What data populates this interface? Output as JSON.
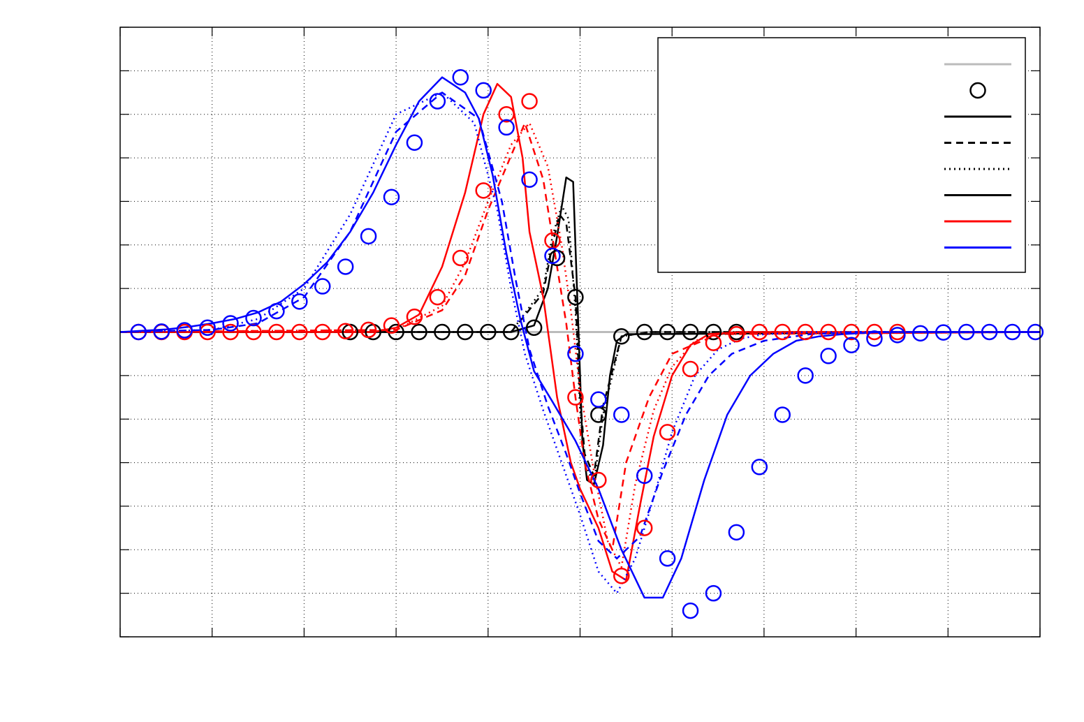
{
  "chart_data": {
    "type": "line",
    "title": "",
    "xlabel": "",
    "ylabel": "",
    "xlim": [
      0,
      20
    ],
    "ylim": [
      -7,
      7
    ],
    "x_ticks": [
      0,
      2,
      4,
      6,
      8,
      10,
      12,
      14,
      16,
      18,
      20
    ],
    "y_ticks": [
      -7,
      -6,
      -5,
      -4,
      -3,
      -2,
      -1,
      0,
      1,
      2,
      3,
      4,
      5,
      6,
      7
    ],
    "grid": true,
    "legend_placement": "top-right",
    "colors": {
      "black": "#000000",
      "red": "#ff0000",
      "blue": "#0000ff",
      "gray": "#bbbbbb"
    },
    "series": [
      {
        "color": "#bbbbbb",
        "style": "solid",
        "width": 3,
        "x": [
          0,
          20
        ],
        "y": [
          0,
          0
        ]
      },
      {
        "color": "#000000",
        "style": "dashed",
        "width": 2.5,
        "x": [
          0,
          8.5,
          9.2,
          9.4,
          9.55,
          9.7,
          9.9,
          10.0,
          10.1,
          10.3,
          10.5,
          10.7,
          10.9,
          11.5,
          20
        ],
        "y": [
          0,
          0,
          0.9,
          2.0,
          2.7,
          2.5,
          0.8,
          -1.5,
          -2.8,
          -3.3,
          -1.7,
          -0.9,
          -0.1,
          0,
          0
        ]
      },
      {
        "color": "#000000",
        "style": "dotted",
        "width": 2.5,
        "x": [
          0,
          8.5,
          9.2,
          9.4,
          9.6,
          9.75,
          9.9,
          10.0,
          10.1,
          10.3,
          10.5,
          10.7,
          10.9,
          11.5,
          20
        ],
        "y": [
          0,
          0,
          1.0,
          2.2,
          2.9,
          2.6,
          0.5,
          -1.8,
          -3.0,
          -3.5,
          -1.9,
          -1.0,
          -0.1,
          0,
          0
        ]
      },
      {
        "color": "#000000",
        "style": "solid",
        "width": 2.5,
        "x": [
          0,
          8.5,
          9.0,
          9.3,
          9.5,
          9.7,
          9.85,
          9.95,
          10.05,
          10.15,
          10.3,
          10.5,
          10.65,
          10.8,
          11.0,
          20
        ],
        "y": [
          0,
          0,
          0.15,
          1.0,
          2.2,
          3.55,
          3.45,
          0.5,
          -2.5,
          -3.4,
          -3.5,
          -2.6,
          -1.0,
          -0.2,
          -0.05,
          0
        ]
      },
      {
        "color": "#ff0000",
        "style": "dashed",
        "width": 2.5,
        "x": [
          0,
          6.0,
          7.0,
          7.5,
          8.0,
          8.4,
          8.8,
          9.2,
          9.5,
          9.7,
          9.9,
          10.1,
          10.4,
          10.7,
          11.0,
          11.5,
          12.0,
          13.0,
          20
        ],
        "y": [
          0,
          0.05,
          0.5,
          1.3,
          2.8,
          3.8,
          4.8,
          3.5,
          1.5,
          0.2,
          -1.5,
          -3.0,
          -4.3,
          -5.0,
          -3.0,
          -1.5,
          -0.5,
          -0.05,
          0
        ]
      },
      {
        "color": "#ff0000",
        "style": "dotted",
        "width": 2.5,
        "x": [
          0,
          6.0,
          7.0,
          7.5,
          8.0,
          8.5,
          8.9,
          9.3,
          9.6,
          9.8,
          10.0,
          10.3,
          10.6,
          10.9,
          11.2,
          11.6,
          12.0,
          12.5,
          13.0,
          20
        ],
        "y": [
          0,
          0.05,
          0.6,
          1.6,
          3.0,
          4.3,
          4.8,
          3.8,
          2.0,
          0.5,
          -1.3,
          -3.2,
          -4.8,
          -5.4,
          -3.5,
          -1.8,
          -0.8,
          -0.2,
          -0.05,
          0
        ]
      },
      {
        "color": "#ff0000",
        "style": "solid",
        "width": 2.5,
        "x": [
          0,
          5.5,
          6.0,
          6.5,
          7.0,
          7.5,
          7.9,
          8.2,
          8.5,
          8.75,
          8.9,
          9.2,
          9.5,
          9.8,
          10.0,
          10.4,
          10.7,
          11.0,
          11.3,
          11.6,
          12.0,
          12.4,
          12.8,
          13.5,
          20
        ],
        "y": [
          0,
          0,
          0.1,
          0.4,
          1.5,
          3.2,
          5.0,
          5.7,
          5.4,
          4.0,
          2.3,
          0.8,
          -1.5,
          -3.0,
          -3.6,
          -4.5,
          -5.5,
          -5.7,
          -4.0,
          -2.4,
          -1.0,
          -0.3,
          -0.05,
          0,
          0
        ]
      },
      {
        "color": "#0000ff",
        "style": "dashed",
        "width": 2.5,
        "x": [
          0,
          2.0,
          3.0,
          4.0,
          5.0,
          6.0,
          7.0,
          7.8,
          8.3,
          8.6,
          8.9,
          9.3,
          9.7,
          10.0,
          10.4,
          10.8,
          11.3,
          11.8,
          12.3,
          12.8,
          13.3,
          14.0,
          15.0,
          16.0,
          20
        ],
        "y": [
          0,
          0.05,
          0.2,
          0.8,
          2.3,
          4.6,
          5.5,
          4.9,
          3.0,
          1.2,
          -0.4,
          -1.7,
          -2.8,
          -3.7,
          -4.8,
          -5.2,
          -4.7,
          -3.2,
          -1.9,
          -1.0,
          -0.5,
          -0.2,
          -0.05,
          0,
          0
        ]
      },
      {
        "color": "#0000ff",
        "style": "dotted",
        "width": 2.5,
        "x": [
          0,
          2.0,
          3.0,
          4.0,
          5.0,
          6.0,
          7.0,
          7.7,
          8.2,
          8.5,
          8.8,
          9.2,
          9.6,
          10.0,
          10.4,
          10.8,
          11.2,
          11.6,
          12.0,
          12.5,
          13.0,
          13.5,
          14.0,
          15.0,
          16.0,
          20
        ],
        "y": [
          0,
          0.05,
          0.3,
          1.0,
          2.7,
          5.0,
          5.5,
          4.8,
          2.8,
          1.0,
          -0.5,
          -1.8,
          -3.0,
          -4.2,
          -5.5,
          -6.0,
          -5.2,
          -3.8,
          -2.3,
          -1.0,
          -0.4,
          -0.15,
          -0.05,
          0,
          0,
          0
        ]
      },
      {
        "color": "#0000ff",
        "style": "solid",
        "width": 2.5,
        "x": [
          0,
          0.5,
          1.0,
          1.5,
          2.0,
          2.5,
          3.0,
          3.5,
          4.0,
          4.5,
          5.0,
          5.5,
          6.0,
          6.5,
          7.0,
          7.5,
          7.8,
          8.1,
          8.4,
          8.7,
          9.0,
          9.4,
          9.9,
          10.4,
          10.9,
          11.4,
          11.8,
          12.2,
          12.7,
          13.2,
          13.7,
          14.2,
          14.7,
          15.2,
          15.7,
          16.5,
          18.0,
          20
        ],
        "y": [
          0,
          0.03,
          0.06,
          0.12,
          0.2,
          0.3,
          0.45,
          0.7,
          1.1,
          1.6,
          2.3,
          3.2,
          4.3,
          5.3,
          5.85,
          5.5,
          4.9,
          3.6,
          1.8,
          0.3,
          -0.9,
          -1.6,
          -2.5,
          -3.6,
          -5.0,
          -6.1,
          -6.1,
          -5.2,
          -3.4,
          -1.9,
          -1.0,
          -0.5,
          -0.2,
          -0.1,
          -0.05,
          0,
          0,
          0
        ]
      }
    ],
    "markers": [
      {
        "color": "#000000",
        "x": [
          5.0,
          5.5,
          6.0,
          6.5,
          7.0,
          7.5,
          8.0,
          8.5,
          9.0,
          9.5,
          9.9,
          10.4,
          10.9,
          11.4,
          11.9,
          12.4,
          12.9,
          13.4
        ],
        "y": [
          0,
          0,
          0,
          0,
          0,
          0,
          0,
          0,
          0.1,
          1.7,
          0.8,
          -1.9,
          -0.1,
          0,
          0,
          0,
          0,
          0
        ]
      },
      {
        "color": "#ff0000",
        "x": [
          0.4,
          0.9,
          1.4,
          1.9,
          2.4,
          2.9,
          3.4,
          3.9,
          4.4,
          4.9,
          5.4,
          5.9,
          6.4,
          6.9,
          7.4,
          7.9,
          8.4,
          8.9,
          9.4,
          9.9,
          10.4,
          10.9,
          11.4,
          11.9,
          12.4,
          12.9,
          13.4,
          13.9,
          14.4,
          14.9,
          15.4,
          15.9,
          16.4,
          16.9
        ],
        "y": [
          0,
          0,
          0,
          0,
          0,
          0,
          0,
          0,
          0,
          0.02,
          0.05,
          0.15,
          0.35,
          0.8,
          1.7,
          3.25,
          5.0,
          5.3,
          2.1,
          -1.5,
          -3.4,
          -5.6,
          -4.5,
          -2.3,
          -0.85,
          -0.25,
          -0.05,
          0,
          0,
          0,
          0,
          0,
          0,
          0
        ]
      },
      {
        "color": "#0000ff",
        "x": [
          0.4,
          0.9,
          1.4,
          1.9,
          2.4,
          2.9,
          3.4,
          3.9,
          4.4,
          4.9,
          5.4,
          5.9,
          6.4,
          6.9,
          7.4,
          7.9,
          8.4,
          8.9,
          9.4,
          9.9,
          10.4,
          10.9,
          11.4,
          11.9,
          12.4,
          12.9,
          13.4,
          13.9,
          14.4,
          14.9,
          15.4,
          15.9,
          16.4,
          16.9,
          17.4,
          17.9,
          18.4,
          18.9,
          19.4,
          19.9
        ],
        "y": [
          0,
          0.01,
          0.04,
          0.1,
          0.2,
          0.32,
          0.48,
          0.7,
          1.05,
          1.5,
          2.2,
          3.1,
          4.35,
          5.3,
          5.85,
          5.55,
          4.7,
          3.5,
          1.75,
          -0.5,
          -1.55,
          -1.9,
          -3.3,
          -5.2,
          -6.4,
          -6.0,
          -4.6,
          -3.1,
          -1.9,
          -1.0,
          -0.55,
          -0.3,
          -0.15,
          -0.07,
          -0.03,
          -0.01,
          0,
          0,
          0,
          0
        ]
      }
    ],
    "legend": {
      "entries": [
        {
          "color": "#bbbbbb",
          "style": "line-solid"
        },
        {
          "color": "#000000",
          "style": "marker-circle"
        },
        {
          "color": "#000000",
          "style": "line-solid"
        },
        {
          "color": "#000000",
          "style": "line-dashed"
        },
        {
          "color": "#000000",
          "style": "line-dotted"
        },
        {
          "color": "#000000",
          "style": "line-solid"
        },
        {
          "color": "#ff0000",
          "style": "line-solid"
        },
        {
          "color": "#0000ff",
          "style": "line-solid"
        }
      ]
    }
  }
}
